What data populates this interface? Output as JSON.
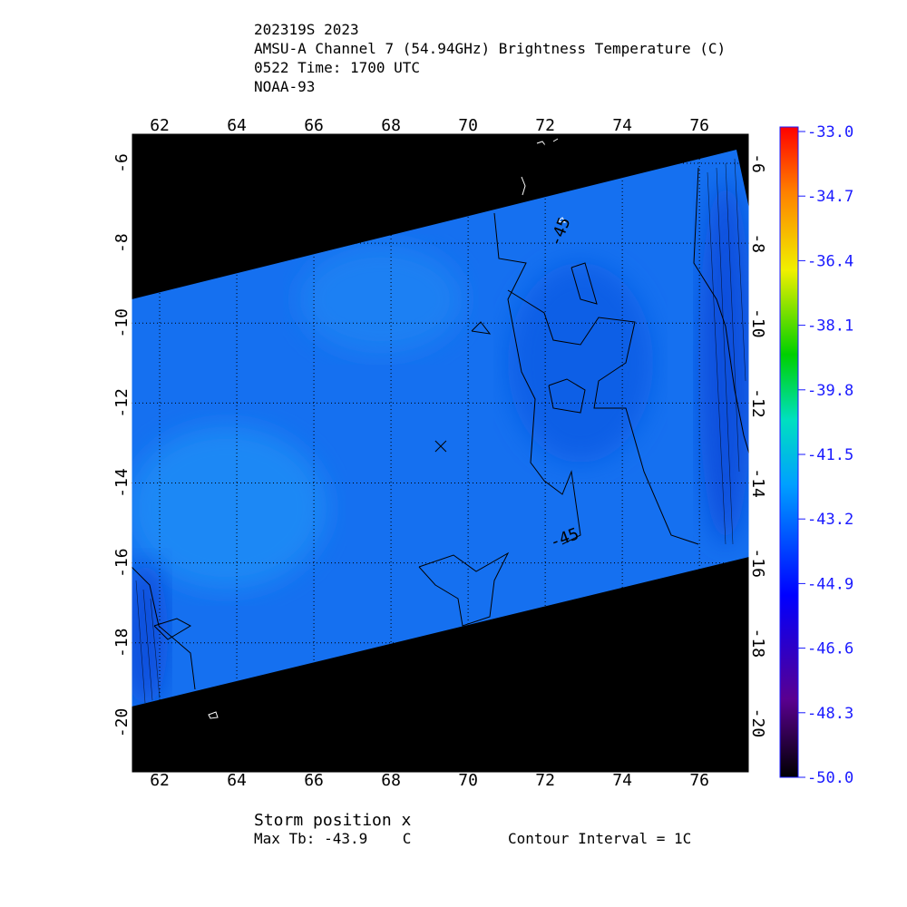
{
  "chart_data": {
    "type": "map",
    "title_lines": [
      "202319S 2023",
      "AMSU-A Channel 7 (54.94GHz) Brightness Temperature (C)",
      "0522 Time: 1700 UTC",
      "NOAA-93"
    ],
    "xlim": [
      61.27,
      77.29
    ],
    "xticks": [
      62,
      64,
      66,
      68,
      70,
      72,
      74,
      76
    ],
    "ylim": [
      -5.25,
      -21.25
    ],
    "yticks": [
      -6,
      -8,
      -10,
      -12,
      -14,
      -16,
      -18,
      -20
    ],
    "grid": true,
    "colorbar": {
      "lim": [
        -50,
        -33
      ],
      "ticks": [
        {
          "value": -33,
          "label": "-33.0"
        },
        {
          "value": -34.7,
          "label": "-34.7"
        },
        {
          "value": -36.4,
          "label": "-36.4"
        },
        {
          "value": -38.1,
          "label": "-38.1"
        },
        {
          "value": -39.8,
          "label": "-39.8"
        },
        {
          "value": -41.5,
          "label": "-41.5"
        },
        {
          "value": -43.2,
          "label": "-43.2"
        },
        {
          "value": -44.9,
          "label": "-44.9"
        },
        {
          "value": -46.6,
          "label": "-46.6"
        },
        {
          "value": -48.3,
          "label": "-48.3"
        },
        {
          "value": -50,
          "label": "-50.0"
        }
      ]
    },
    "storm_position": {
      "lon": 69.29,
      "lat": -13.08
    },
    "contour_labels": [
      "-45",
      "-45"
    ],
    "footer": {
      "storm": "Storm position x",
      "max_tb": "Max Tb: -43.9    C",
      "interval": "Contour Interval = 1C"
    }
  }
}
